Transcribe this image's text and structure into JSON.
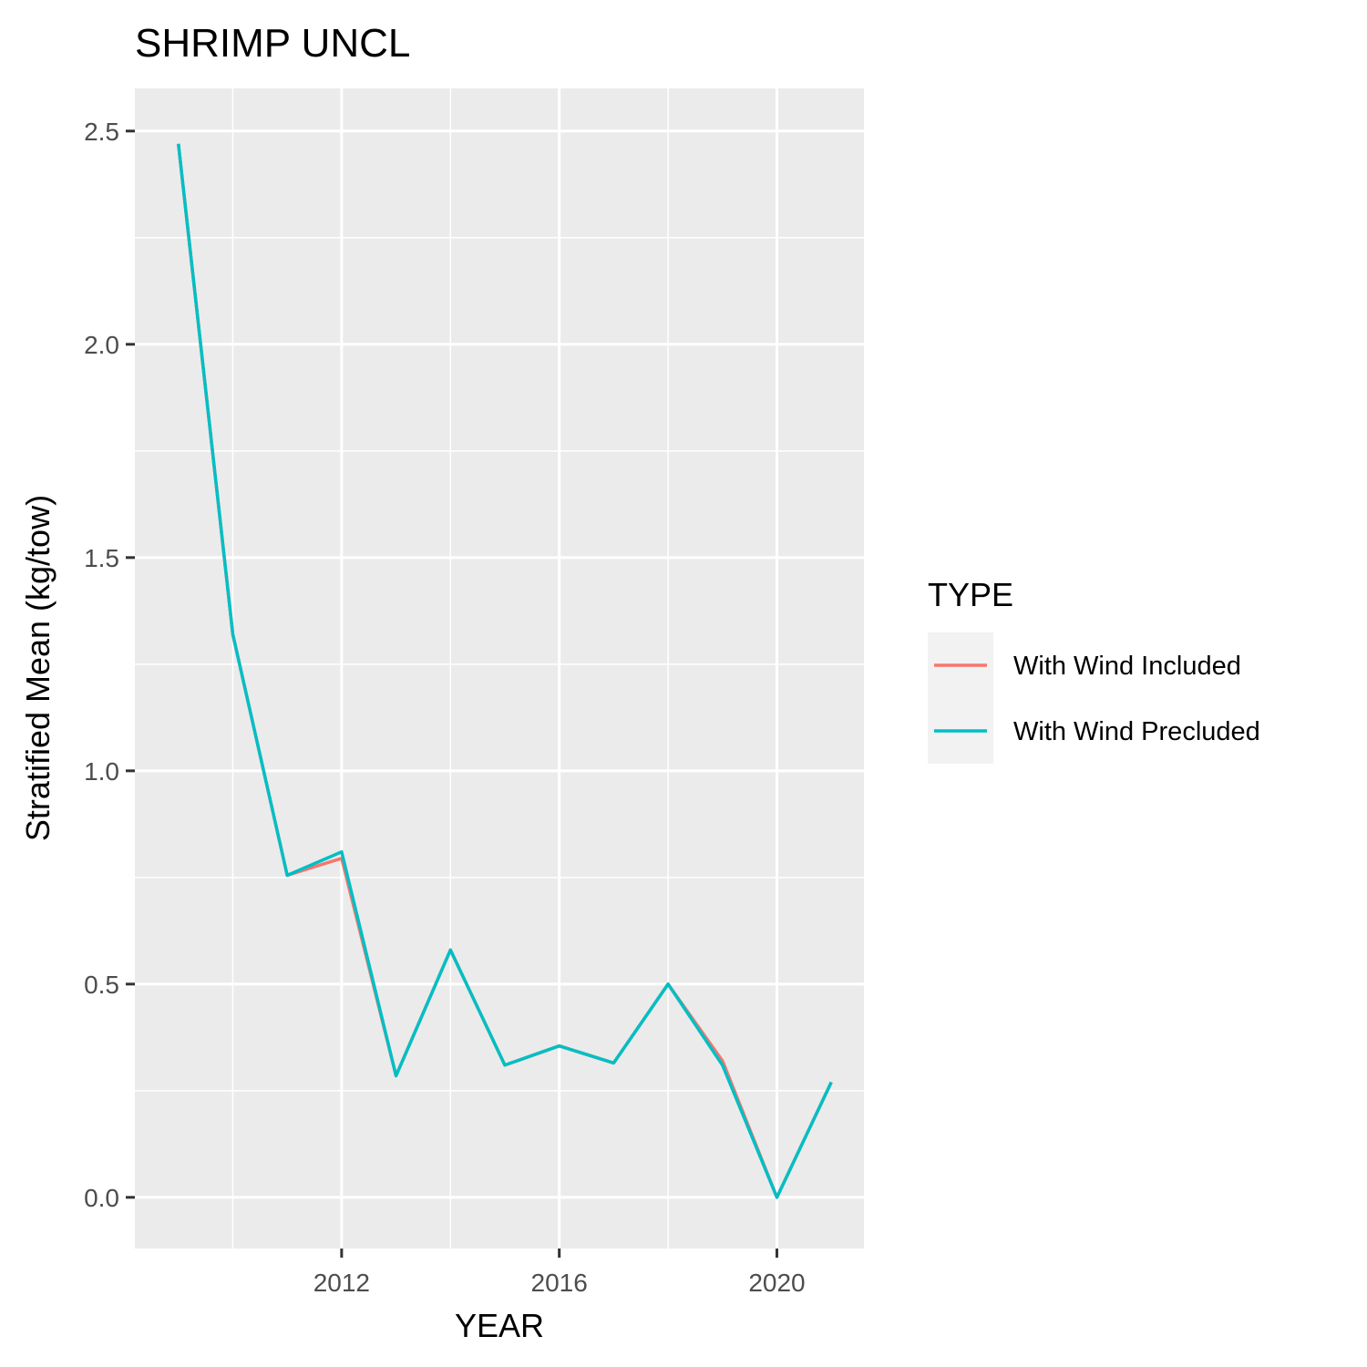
{
  "chart_data": {
    "type": "line",
    "title": "SHRIMP UNCL",
    "xlabel": "YEAR",
    "ylabel": "Stratified Mean (kg/tow)",
    "x": [
      2009,
      2010,
      2011,
      2012,
      2013,
      2014,
      2015,
      2016,
      2017,
      2018,
      2019,
      2020,
      2021
    ],
    "xlim": [
      2008.2,
      2021.6
    ],
    "ylim": [
      -0.12,
      2.6
    ],
    "x_ticks": [
      2012,
      2016,
      2020
    ],
    "x_tick_labels": [
      "2012",
      "2016",
      "2020"
    ],
    "y_ticks": [
      0.0,
      0.5,
      1.0,
      1.5,
      2.0,
      2.5
    ],
    "y_tick_labels": [
      "0.0",
      "0.5",
      "1.0",
      "1.5",
      "2.0",
      "2.5"
    ],
    "grid": true,
    "legend": {
      "title": "TYPE",
      "placement": "right"
    },
    "series": [
      {
        "name": "With Wind Included",
        "color": "#f8766d",
        "values": [
          2.47,
          1.32,
          0.755,
          0.795,
          0.285,
          0.58,
          0.31,
          0.355,
          0.315,
          0.5,
          0.32,
          0.0,
          0.27
        ]
      },
      {
        "name": "With Wind Precluded",
        "color": "#00bfc4",
        "values": [
          2.47,
          1.32,
          0.755,
          0.81,
          0.285,
          0.58,
          0.31,
          0.355,
          0.315,
          0.5,
          0.31,
          0.0,
          0.27
        ]
      }
    ],
    "panel_color": "#ebebeb",
    "grid_color": "#ffffff",
    "legend_key_bg": "#f2f2f2"
  }
}
